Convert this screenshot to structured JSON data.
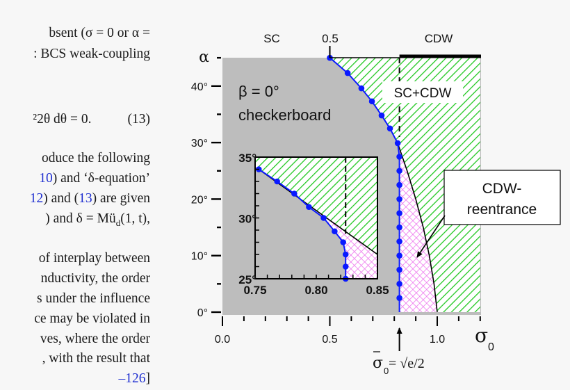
{
  "text_column": {
    "lines": [
      [
        {
          "t": "bsent (σ = 0 or α ="
        }
      ],
      [
        {
          "t": ": BCS weak-coupling"
        }
      ],
      [
        {
          "t": "²2θ dθ = 0."
        },
        {
          "t": "(13)",
          "eqnum": true
        }
      ],
      [
        {
          "t": "oduce  the  following"
        }
      ],
      [
        {
          "t": "10",
          "ref": true
        },
        {
          "t": ")  and  ‘δ-equation’"
        }
      ],
      [
        {
          "t": "12",
          "ref": true
        },
        {
          "t": ") and ("
        },
        {
          "t": "13",
          "ref": true
        },
        {
          "t": ") are given"
        }
      ],
      [
        {
          "t": ")  and  δ = Mü"
        },
        {
          "t": "d",
          "sub": true
        },
        {
          "t": "(1, t),"
        }
      ],
      [
        {
          "t": "of  interplay  between"
        }
      ],
      [
        {
          "t": "nductivity,  the  order"
        }
      ],
      [
        {
          "t": "s under the influence"
        }
      ],
      [
        {
          "t": "ce may be violated in"
        }
      ],
      [
        {
          "t": "ves,  where  the  order"
        }
      ],
      [
        {
          "t": ",  with the result that"
        }
      ],
      [
        {
          "t": "–126",
          "ref": true
        },
        {
          "t": "]"
        }
      ]
    ]
  },
  "figure": {
    "region_labels": {
      "sc": "SC",
      "top_tick": "0.5",
      "cdw": "CDW"
    },
    "y_axis_symbol": "α",
    "x_axis_symbol": "σ",
    "x_axis_subscript": "0",
    "beta_label": "β = 0°",
    "pattern_label": "checkerboard",
    "coexist_label": "SC+CDW",
    "reentrance_label": [
      "CDW-",
      "reentrance"
    ],
    "sigma_bar_label": {
      "sym": "σ",
      "sub": "0",
      "rest": " = √e/2"
    },
    "colors": {
      "sc_gray": "#bdbdbd",
      "cdw_hatch": "#22c822",
      "reentrance_hatch": "#ee77ee",
      "boundary_blue": "#0a1aff",
      "background": "#f7f7f7"
    }
  },
  "chart_data": [
    {
      "type": "line",
      "panel": "main",
      "xlabel": "σ0",
      "ylabel": "α",
      "xlim": [
        0.0,
        1.2
      ],
      "ylim": [
        0,
        45
      ],
      "x_ticks": [
        0.0,
        0.5,
        1.0
      ],
      "x_tick_labels": [
        "0.0",
        "0.5",
        "1.0"
      ],
      "y_ticks": [
        0,
        10,
        20,
        30,
        40
      ],
      "y_tick_labels": [
        "0°",
        "10°",
        "20°",
        "30°",
        "40°"
      ],
      "grid": false,
      "series": [
        {
          "role": "SC boundary (blue, dots)",
          "points": [
            [
              0.5,
              45
            ],
            [
              0.583,
              42.3
            ],
            [
              0.647,
              39.6
            ],
            [
              0.696,
              37.3
            ],
            [
              0.741,
              34.8
            ],
            [
              0.78,
              32.5
            ],
            [
              0.816,
              29.9
            ],
            [
              0.824,
              27.5
            ],
            [
              0.824,
              25
            ],
            [
              0.824,
              22.5
            ],
            [
              0.824,
              20
            ],
            [
              0.824,
              17.5
            ],
            [
              0.824,
              15
            ],
            [
              0.824,
              12.5
            ],
            [
              0.824,
              10
            ],
            [
              0.824,
              7.5
            ],
            [
              0.824,
              5
            ],
            [
              0.824,
              2.5
            ],
            [
              0.824,
              0
            ]
          ]
        },
        {
          "role": "CDW boundary (black)",
          "points": [
            [
              0.816,
              29.9
            ],
            [
              0.86,
              25
            ],
            [
              0.9,
              20
            ],
            [
              0.935,
              15
            ],
            [
              0.963,
              10
            ],
            [
              0.985,
              5
            ],
            [
              1.0,
              0
            ]
          ]
        },
        {
          "role": "dashed line σ0 = √e/2",
          "x": 0.824
        }
      ]
    },
    {
      "type": "line",
      "panel": "inset",
      "xlim": [
        0.75,
        0.85
      ],
      "ylim": [
        25,
        35
      ],
      "x_ticks": [
        0.75,
        0.8,
        0.85
      ],
      "x_tick_labels": [
        "0.75",
        "0.80",
        "0.85"
      ],
      "y_ticks": [
        25,
        30,
        35
      ],
      "y_tick_labels": [
        "25°",
        "30°",
        "35°"
      ],
      "series": [
        {
          "role": "SC boundary (blue, dots)",
          "points": [
            [
              0.753,
              34.0
            ],
            [
              0.768,
              33.0
            ],
            [
              0.782,
              32.0
            ],
            [
              0.794,
              30.9
            ],
            [
              0.806,
              30.0
            ],
            [
              0.815,
              28.9
            ],
            [
              0.822,
              28.0
            ],
            [
              0.824,
              27.0
            ],
            [
              0.824,
              26.0
            ],
            [
              0.824,
              25.0
            ]
          ]
        },
        {
          "role": "CDW boundary (black)",
          "points": [
            [
              0.753,
              34.0
            ],
            [
              0.85,
              27.0
            ]
          ]
        },
        {
          "role": "dashed line",
          "x": 0.824
        }
      ]
    }
  ]
}
